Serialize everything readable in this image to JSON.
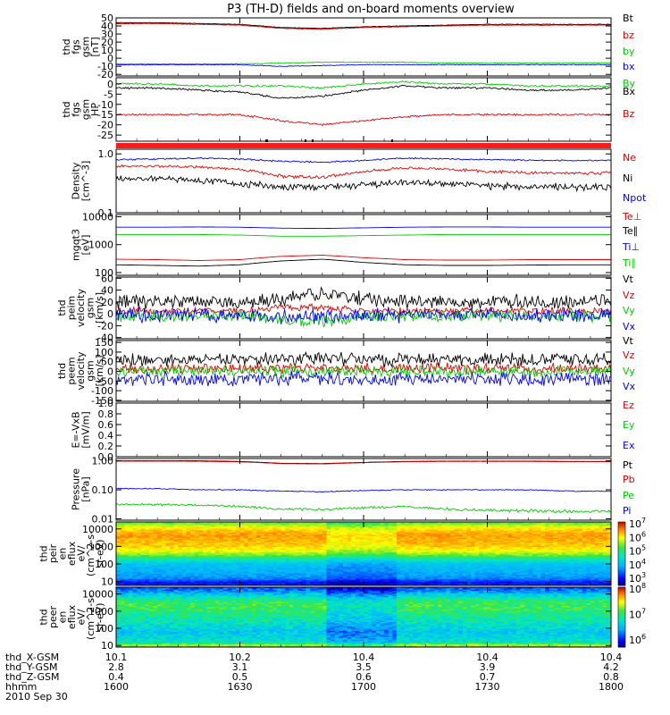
{
  "title": "P3 (TH-D) fields and on-board moments overview",
  "chart_data": [
    {
      "type": "line",
      "ylabel": [
        "thd",
        "fgs",
        "gsm",
        "[nT]"
      ],
      "yticks": [
        {
          "v": 50,
          "t": "50"
        },
        {
          "v": 40,
          "t": "40"
        },
        {
          "v": 30,
          "t": "30"
        },
        {
          "v": 20,
          "t": "20"
        },
        {
          "v": 10,
          "t": "10"
        },
        {
          "v": 0,
          "t": "0"
        },
        {
          "v": -10,
          "t": "-10"
        },
        {
          "v": -20,
          "t": "-20"
        }
      ],
      "ylim": [
        -22,
        50
      ],
      "scale": "linear",
      "series": [
        {
          "name": "Bt",
          "color": "#000000",
          "noise": 0.3,
          "values": [
            44,
            44,
            43,
            42,
            38,
            37,
            39,
            40,
            41,
            42,
            42,
            42,
            42
          ]
        },
        {
          "name": "bz",
          "color": "#e00000",
          "noise": 0.3,
          "values": [
            43,
            43,
            42,
            41,
            37,
            36,
            38,
            39,
            40,
            41,
            41,
            41,
            41
          ]
        },
        {
          "name": "by",
          "color": "#00cc00",
          "noise": 0.4,
          "values": [
            -7,
            -7,
            -7,
            -7,
            -6,
            -5,
            -5,
            -5,
            -6,
            -6,
            -6,
            -6,
            -6
          ]
        },
        {
          "name": "bx",
          "color": "#0000ff",
          "noise": 0.4,
          "values": [
            -8,
            -8,
            -8,
            -8,
            -10,
            -9,
            -8,
            -8,
            -8,
            -8,
            -8,
            -8,
            -8
          ]
        }
      ]
    },
    {
      "type": "line",
      "ylabel": [
        "thd",
        "fgs",
        "gsm",
        "HP"
      ],
      "yticks": [
        {
          "v": 0,
          "t": "0"
        },
        {
          "v": -5,
          "t": "-5"
        },
        {
          "v": -10,
          "t": "-10"
        },
        {
          "v": -15,
          "t": "-15"
        },
        {
          "v": -20,
          "t": "-20"
        },
        {
          "v": -25,
          "t": "-25"
        }
      ],
      "ylim": [
        -28,
        3
      ],
      "scale": "linear",
      "series": [
        {
          "name": "By",
          "color": "#00cc00",
          "noise": 0.4,
          "values": [
            0,
            0,
            -1,
            -1,
            -1,
            -2,
            0,
            1,
            0,
            0,
            -1,
            -1,
            -1
          ]
        },
        {
          "name": "Bx",
          "color": "#000000",
          "noise": 0.4,
          "values": [
            -2,
            -2,
            -3,
            -4,
            -7,
            -6,
            -3,
            -1,
            -2,
            -2,
            -3,
            -3,
            -2
          ]
        },
        {
          "name": "Bz",
          "color": "#e00000",
          "noise": 0.4,
          "values": [
            -15,
            -15,
            -15,
            -15,
            -18,
            -20,
            -18,
            -16,
            -15,
            -15,
            -15,
            -15,
            -15
          ]
        }
      ]
    },
    {
      "type": "line",
      "ylabel": [
        "Density",
        "[cm^-3]"
      ],
      "yticks": [
        {
          "v": 1.0,
          "t": "1.0"
        },
        {
          "v": 0.1,
          "t": "0.1"
        }
      ],
      "ylim": [
        0.1,
        1.2
      ],
      "scale": "log",
      "series": [
        {
          "name": "Ne",
          "color": "#e00000",
          "noise": 0.025,
          "values": [
            0.62,
            0.62,
            0.6,
            0.55,
            0.42,
            0.4,
            0.5,
            0.58,
            0.55,
            0.5,
            0.48,
            0.47,
            0.48
          ]
        },
        {
          "name": "Ni",
          "color": "#000000",
          "noise": 0.035,
          "values": [
            0.38,
            0.38,
            0.36,
            0.32,
            0.27,
            0.27,
            0.3,
            0.33,
            0.31,
            0.29,
            0.28,
            0.27,
            0.28
          ]
        },
        {
          "name": "Npot",
          "color": "#0000ff",
          "noise": 0.02,
          "values": [
            0.8,
            0.82,
            0.85,
            0.82,
            0.75,
            0.72,
            0.78,
            0.85,
            0.82,
            0.8,
            0.78,
            0.77,
            0.78
          ]
        }
      ]
    },
    {
      "type": "line",
      "ylabel": [
        "mgqt3",
        "[eV]"
      ],
      "yticks": [
        {
          "v": 10000,
          "t": "10000"
        },
        {
          "v": 1000,
          "t": "1000"
        },
        {
          "v": 100,
          "t": "100"
        }
      ],
      "ylim": [
        80,
        12000
      ],
      "scale": "log",
      "series": [
        {
          "name": "Te⊥",
          "color": "#e00000",
          "noise": 0.025,
          "values": [
            300,
            290,
            270,
            290,
            380,
            420,
            340,
            290,
            280,
            280,
            290,
            290,
            290
          ]
        },
        {
          "name": "Te∥",
          "color": "#000000",
          "noise": 0.025,
          "values": [
            190,
            180,
            170,
            190,
            260,
            300,
            230,
            190,
            180,
            180,
            185,
            190,
            190
          ]
        },
        {
          "name": "Ti⊥",
          "color": "#0000ff",
          "noise": 0.02,
          "values": [
            4200,
            4200,
            4300,
            4200,
            3900,
            3800,
            4000,
            4200,
            4300,
            4300,
            4200,
            4200,
            4200
          ]
        },
        {
          "name": "Ti∥",
          "color": "#00cc00",
          "noise": 0.03,
          "values": [
            2300,
            2300,
            2300,
            2200,
            2000,
            2000,
            2100,
            2200,
            2300,
            2300,
            2300,
            2300,
            2300
          ]
        }
      ]
    },
    {
      "type": "line",
      "ylabel": [
        "thd",
        "peim",
        "velocity",
        "gsm",
        "[km/s]"
      ],
      "yticks": [
        {
          "v": 60,
          "t": "60"
        },
        {
          "v": 40,
          "t": "40"
        },
        {
          "v": 20,
          "t": "20"
        },
        {
          "v": 0,
          "t": "0"
        },
        {
          "v": -20,
          "t": "-20"
        },
        {
          "v": -40,
          "t": "-40"
        }
      ],
      "ylim": [
        -42,
        62
      ],
      "scale": "linear",
      "series": [
        {
          "name": "Vt",
          "color": "#000000",
          "noise": 10,
          "values": [
            20,
            20,
            20,
            20,
            25,
            35,
            25,
            20,
            20,
            20,
            20,
            20,
            22
          ]
        },
        {
          "name": "Vz",
          "color": "#e00000",
          "noise": 5,
          "values": [
            5,
            5,
            5,
            5,
            10,
            10,
            5,
            5,
            5,
            5,
            5,
            5,
            5
          ]
        },
        {
          "name": "Vy",
          "color": "#00cc00",
          "noise": 9,
          "values": [
            -3,
            -3,
            -3,
            -3,
            -8,
            -12,
            -5,
            -3,
            -3,
            -3,
            -3,
            -3,
            -3
          ]
        },
        {
          "name": "Vx",
          "color": "#0000ff",
          "noise": 10,
          "values": [
            -2,
            -2,
            -2,
            -2,
            -5,
            -5,
            -2,
            -2,
            -2,
            -2,
            -2,
            -2,
            -2
          ]
        }
      ]
    },
    {
      "type": "line",
      "ylabel": [
        "thd",
        "peem",
        "velocity",
        "gsm",
        "[km/s]"
      ],
      "yticks": [
        {
          "v": 150,
          "t": "150"
        },
        {
          "v": 100,
          "t": "100"
        },
        {
          "v": 50,
          "t": "50"
        },
        {
          "v": 0,
          "t": "0"
        },
        {
          "v": -50,
          "t": "-50"
        },
        {
          "v": -100,
          "t": "-100"
        },
        {
          "v": -150,
          "t": "-150"
        }
      ],
      "ylim": [
        -155,
        160
      ],
      "scale": "linear",
      "series": [
        {
          "name": "Vt",
          "color": "#000000",
          "noise": 28,
          "values": [
            60,
            60,
            60,
            60,
            65,
            70,
            60,
            60,
            60,
            60,
            60,
            60,
            60
          ]
        },
        {
          "name": "Vz",
          "color": "#e00000",
          "noise": 22,
          "values": [
            15,
            15,
            15,
            15,
            15,
            15,
            15,
            15,
            15,
            15,
            15,
            15,
            15
          ]
        },
        {
          "name": "Vy",
          "color": "#00cc00",
          "noise": 25,
          "values": [
            0,
            0,
            0,
            0,
            0,
            0,
            0,
            0,
            0,
            0,
            0,
            0,
            0
          ]
        },
        {
          "name": "Vx",
          "color": "#0000ff",
          "noise": 30,
          "values": [
            -40,
            -40,
            -40,
            -40,
            -35,
            -35,
            -40,
            -40,
            -40,
            -40,
            -40,
            -40,
            -40
          ]
        }
      ]
    },
    {
      "type": "line",
      "ylabel": [
        "E=-VxB",
        "[mV/m]"
      ],
      "yticks": [
        {
          "v": 1.0,
          "t": "1.0"
        },
        {
          "v": 0.8,
          "t": "0.8"
        },
        {
          "v": 0.6,
          "t": "0.6"
        },
        {
          "v": 0.4,
          "t": "0.4"
        },
        {
          "v": 0.2,
          "t": "0.2"
        },
        {
          "v": 0.0,
          "t": "0.0"
        }
      ],
      "ylim": [
        0,
        1
      ],
      "scale": "linear",
      "series": [
        {
          "name": "Ez",
          "color": "#e00000",
          "values": []
        },
        {
          "name": "Ey",
          "color": "#00cc00",
          "values": []
        },
        {
          "name": "Ex",
          "color": "#0000ff",
          "values": []
        }
      ]
    },
    {
      "type": "line",
      "ylabel": [
        "Pressure",
        "[nPa]"
      ],
      "yticks": [
        {
          "v": 1.0,
          "t": "1.00"
        },
        {
          "v": 0.1,
          "t": "0.10"
        },
        {
          "v": 0.01,
          "t": "0.01"
        }
      ],
      "ylim": [
        0.009,
        1.2
      ],
      "scale": "log",
      "series": [
        {
          "name": "Pt",
          "color": "#000000",
          "noise": 0.005,
          "values": [
            1.0,
            1.0,
            1.0,
            0.95,
            0.82,
            0.8,
            0.88,
            0.95,
            0.97,
            0.97,
            0.97,
            0.95,
            0.95
          ]
        },
        {
          "name": "Pb",
          "color": "#e00000",
          "noise": 0.005,
          "values": [
            0.97,
            0.97,
            0.96,
            0.92,
            0.8,
            0.78,
            0.86,
            0.93,
            0.95,
            0.95,
            0.95,
            0.93,
            0.93
          ]
        },
        {
          "name": "Pe",
          "color": "#00cc00",
          "noise": 0.002,
          "values": [
            0.032,
            0.031,
            0.03,
            0.027,
            0.022,
            0.021,
            0.024,
            0.026,
            0.022,
            0.02,
            0.019,
            0.018,
            0.018
          ]
        },
        {
          "name": "Pi",
          "color": "#0000ff",
          "noise": 0.003,
          "values": [
            0.11,
            0.11,
            0.1,
            0.1,
            0.09,
            0.085,
            0.095,
            0.1,
            0.1,
            0.1,
            0.1,
            0.09,
            0.09
          ]
        }
      ]
    },
    {
      "type": "heatmap",
      "ylabel": [
        "thd",
        "peir",
        "en",
        "eflux",
        "eV/",
        "(cm^2-s-",
        "sr-eV)"
      ],
      "yticks": [
        {
          "v": 10000,
          "t": "10000"
        },
        {
          "v": 1000,
          "t": "1000"
        },
        {
          "v": 100,
          "t": "100"
        },
        {
          "v": 10,
          "t": "10"
        }
      ],
      "ylim": [
        6,
        25000
      ],
      "scale": "log",
      "colorbar": {
        "min_exp": 3,
        "max_exp": 7,
        "labels": [
          "10^7",
          "10^6",
          "10^5",
          "10^4",
          "10^3"
        ]
      },
      "profile": [
        [
          7,
          3.6
        ],
        [
          8,
          3.4
        ],
        [
          10,
          3.6
        ],
        [
          15,
          4.0
        ],
        [
          30,
          4.2
        ],
        [
          60,
          4.3
        ],
        [
          100,
          4.4
        ],
        [
          200,
          5.0
        ],
        [
          300,
          5.5
        ],
        [
          500,
          5.9
        ],
        [
          1000,
          6.2
        ],
        [
          2000,
          6.3
        ],
        [
          4000,
          6.4
        ],
        [
          7000,
          6.3
        ],
        [
          12000,
          6.0
        ],
        [
          20000,
          5.6
        ]
      ]
    },
    {
      "type": "heatmap",
      "ylabel": [
        "thd",
        "peer",
        "en",
        "eflux",
        "eV/",
        "(cm^2-s-",
        "sr-eV)"
      ],
      "yticks": [
        {
          "v": 10000,
          "t": "10000"
        },
        {
          "v": 1000,
          "t": "1000"
        },
        {
          "v": 100,
          "t": "100"
        },
        {
          "v": 10,
          "t": "10"
        }
      ],
      "ylim": [
        8,
        25000
      ],
      "scale": "log",
      "colorbar": {
        "min_exp": 6,
        "max_exp": 8,
        "labels": [
          "10^8",
          "10^7",
          "10^6"
        ]
      },
      "profile": [
        [
          8,
          7.0
        ],
        [
          10,
          7.5
        ],
        [
          12,
          7.2
        ],
        [
          15,
          6.9
        ],
        [
          30,
          6.8
        ],
        [
          60,
          6.7
        ],
        [
          100,
          6.8
        ],
        [
          200,
          6.9
        ],
        [
          500,
          7.0
        ],
        [
          1000,
          7.1
        ],
        [
          2000,
          7.15
        ],
        [
          4000,
          7.1
        ],
        [
          8000,
          6.8
        ],
        [
          15000,
          6.5
        ],
        [
          22000,
          6.4
        ]
      ]
    }
  ],
  "legend_labels": [
    [
      "Bt",
      "bz",
      "by",
      "bx"
    ],
    [
      "By",
      "Bx",
      "Bz"
    ],
    [
      "Ne",
      "Ni",
      "Npot"
    ],
    [
      "Te⊥",
      "Te∥",
      "Ti⊥",
      "Ti∥"
    ],
    [
      "Vt",
      "Vz",
      "Vy",
      "Vx"
    ],
    [
      "Vt",
      "Vz",
      "Vy",
      "Vx"
    ],
    [
      "Ez",
      "Ey",
      "Ex"
    ],
    [
      "Pt",
      "Pb",
      "Pe",
      "Pi"
    ]
  ],
  "footer": {
    "rows": [
      {
        "label": "thd_X-GSM",
        "values": [
          "10.1",
          "10.2",
          "10.4",
          "10.4",
          "10.4"
        ]
      },
      {
        "label": "thd_Y-GSM",
        "values": [
          "2.8",
          "3.1",
          "3.5",
          "3.9",
          "4.2"
        ]
      },
      {
        "label": "thd_Z-GSM",
        "values": [
          "0.4",
          "0.5",
          "0.6",
          "0.7",
          "0.8"
        ]
      },
      {
        "label": "hhmm",
        "values": [
          "1600",
          "1630",
          "1700",
          "1730",
          "1800"
        ]
      }
    ],
    "date": "2010 Sep 30"
  }
}
